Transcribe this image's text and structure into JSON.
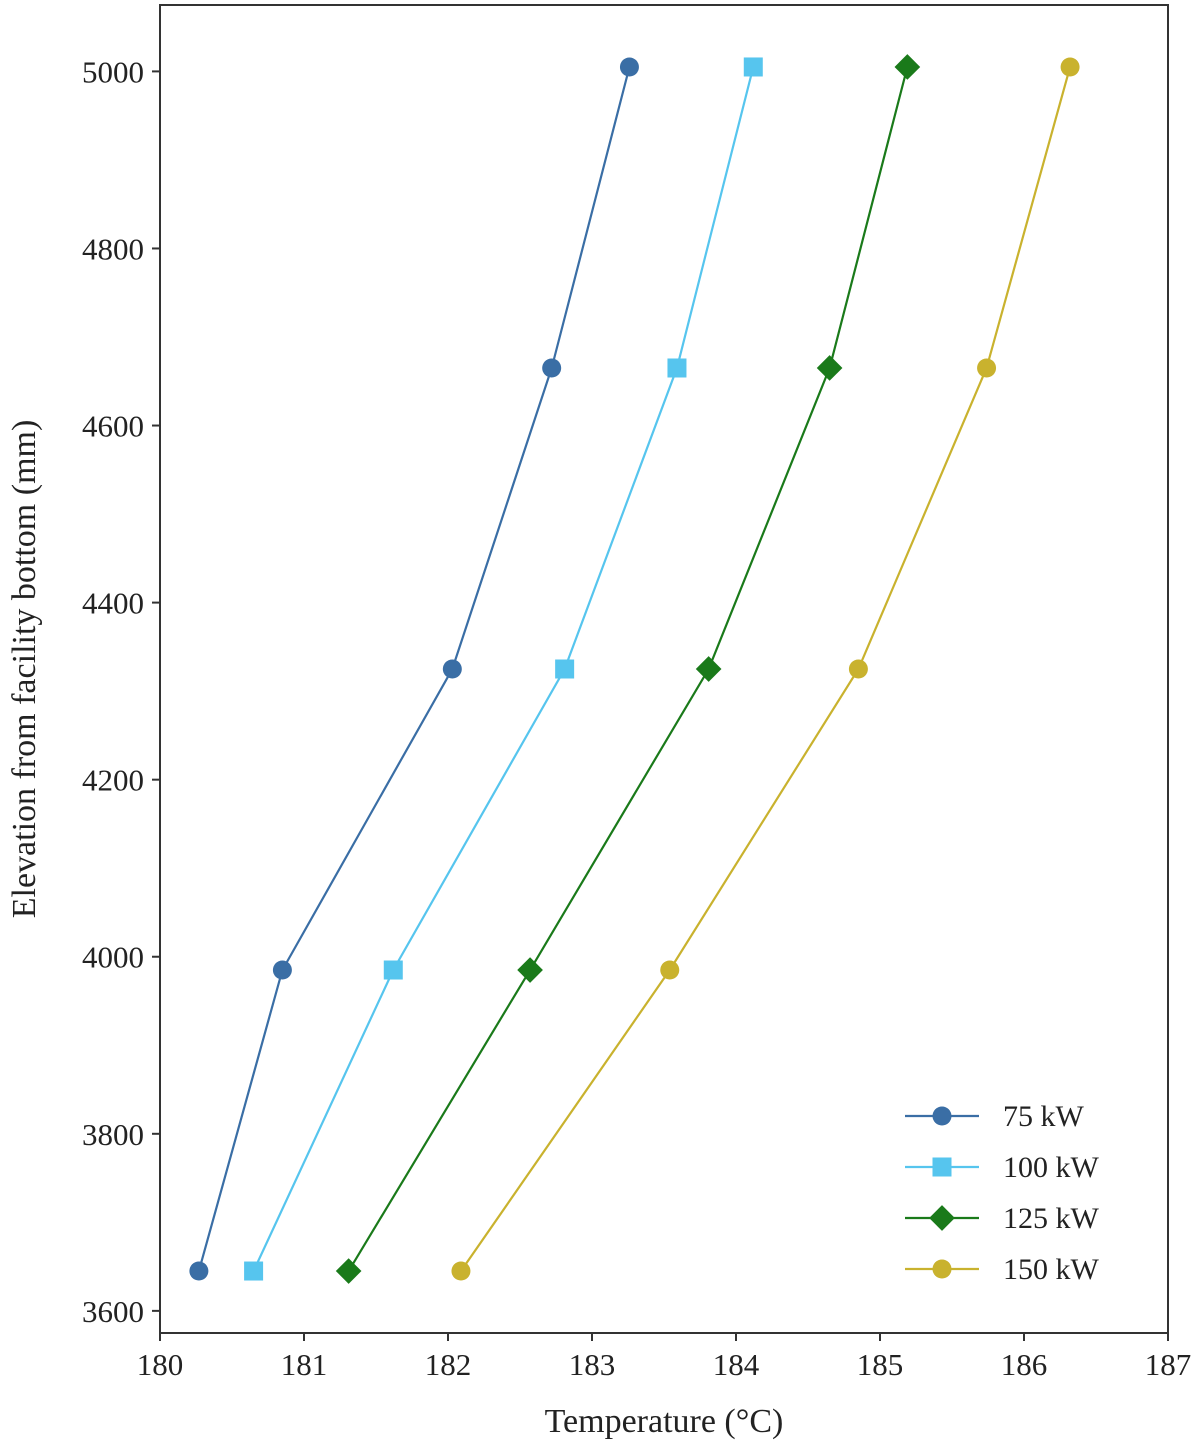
{
  "chart_data": {
    "type": "line",
    "title": "",
    "xlabel": "Temperature (°C)",
    "ylabel": "Elevation from facility bottom (mm)",
    "xlim": [
      180,
      187
    ],
    "ylim": [
      3575,
      5075
    ],
    "xticks": [
      180,
      181,
      182,
      183,
      184,
      185,
      186,
      187
    ],
    "yticks": [
      3600,
      3800,
      4000,
      4200,
      4400,
      4600,
      4800,
      5000
    ],
    "legend_position": "bottom-right",
    "series": [
      {
        "name": "75 kW",
        "color": "#3a6ea5",
        "marker": "circle",
        "points": [
          {
            "x": 180.27,
            "y": 3645
          },
          {
            "x": 180.85,
            "y": 3985
          },
          {
            "x": 182.03,
            "y": 4325
          },
          {
            "x": 182.72,
            "y": 4665
          },
          {
            "x": 183.26,
            "y": 5005
          }
        ]
      },
      {
        "name": "100 kW",
        "color": "#56c5ee",
        "marker": "square",
        "points": [
          {
            "x": 180.65,
            "y": 3645
          },
          {
            "x": 181.62,
            "y": 3985
          },
          {
            "x": 182.81,
            "y": 4325
          },
          {
            "x": 183.59,
            "y": 4665
          },
          {
            "x": 184.12,
            "y": 5005
          }
        ]
      },
      {
        "name": "125 kW",
        "color": "#1a7a1a",
        "marker": "diamond",
        "points": [
          {
            "x": 181.31,
            "y": 3645
          },
          {
            "x": 182.57,
            "y": 3985
          },
          {
            "x": 183.81,
            "y": 4325
          },
          {
            "x": 184.65,
            "y": 4665
          },
          {
            "x": 185.19,
            "y": 5005
          }
        ]
      },
      {
        "name": "150 kW",
        "color": "#c9b22e",
        "marker": "circle",
        "points": [
          {
            "x": 182.09,
            "y": 3645
          },
          {
            "x": 183.54,
            "y": 3985
          },
          {
            "x": 184.85,
            "y": 4325
          },
          {
            "x": 185.74,
            "y": 4665
          },
          {
            "x": 186.32,
            "y": 5005
          }
        ]
      }
    ]
  }
}
